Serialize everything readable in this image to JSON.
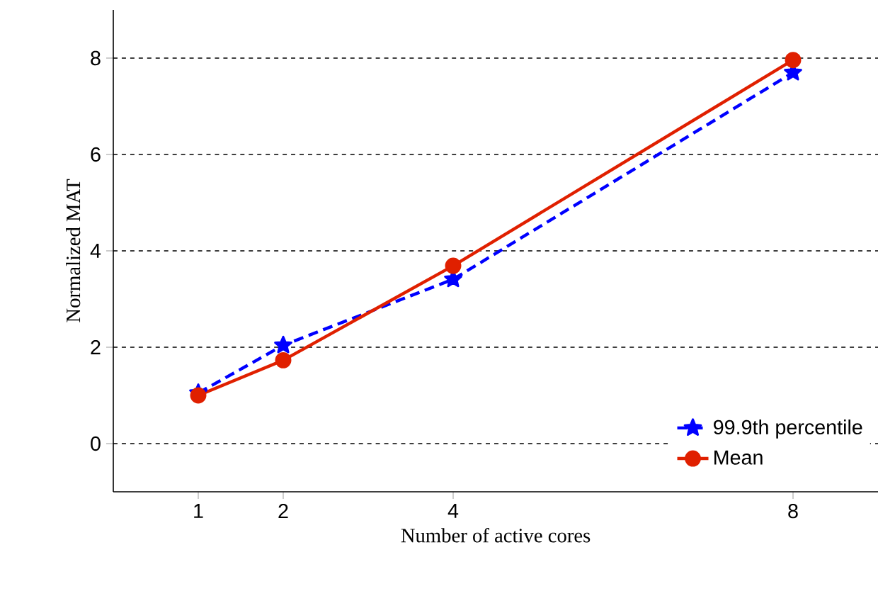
{
  "chart_data": {
    "type": "line",
    "xlabel": "Number of active cores",
    "ylabel": "Normalized MAT",
    "x": [
      1,
      2,
      4,
      8
    ],
    "xlim": [
      0,
      9
    ],
    "xticks": [
      1,
      2,
      4,
      8
    ],
    "ylim": [
      -1,
      9
    ],
    "yticks": [
      0,
      2,
      4,
      6,
      8
    ],
    "grid": "y",
    "legend": "bottom right",
    "series": [
      {
        "name": "99.9th percentile",
        "color": "#0000ff",
        "values": [
          1.05,
          2.04,
          3.41,
          7.7
        ],
        "marker": "star",
        "line_style": "dashed"
      },
      {
        "name": "Mean",
        "color": "#e02000",
        "values": [
          1.0,
          1.73,
          3.69,
          7.96
        ],
        "marker": "circle",
        "line_style": "solid"
      }
    ]
  }
}
